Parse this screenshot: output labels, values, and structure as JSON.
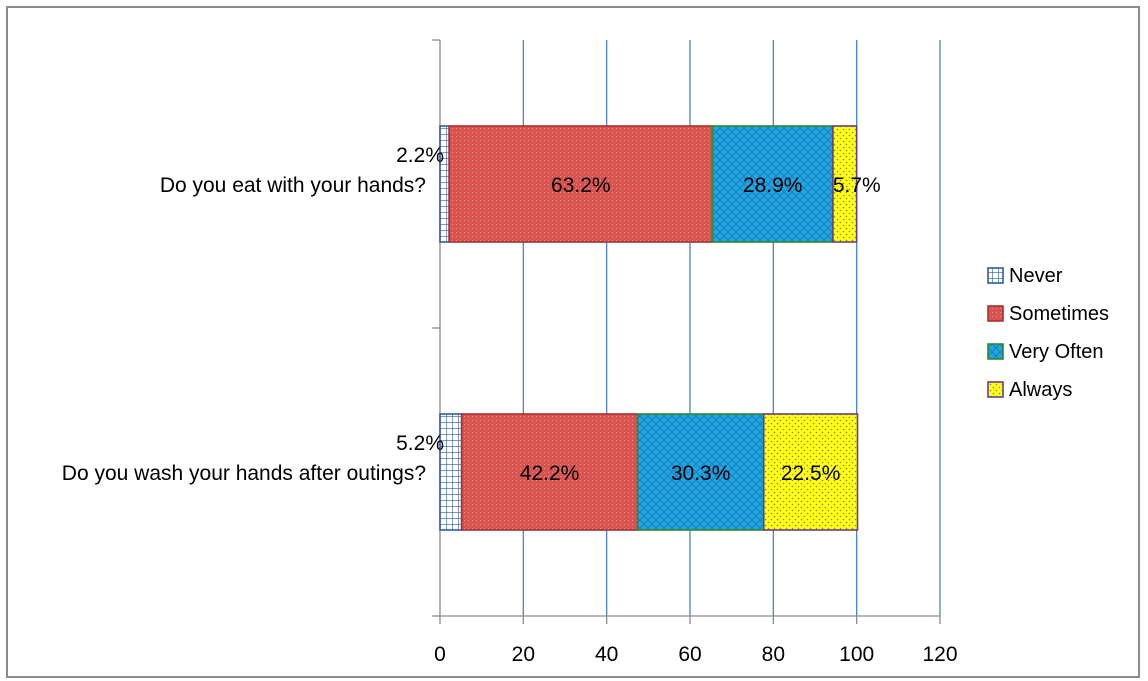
{
  "chart_data": {
    "type": "bar",
    "orientation": "horizontal",
    "stacked": true,
    "categories": [
      "Do you eat with your hands?",
      "Do you wash your hands after outings?"
    ],
    "series": [
      {
        "name": "Never",
        "values": [
          2.2,
          5.2
        ],
        "labels": [
          "2.2%",
          "5.2%"
        ],
        "color": "#ffffff",
        "border": "#2e5e9e",
        "pattern": "grid"
      },
      {
        "name": "Sometimes",
        "values": [
          63.2,
          42.2
        ],
        "labels": [
          "63.2%",
          "42.2%"
        ],
        "color": "#d9534f",
        "border": "#a83232",
        "pattern": "fine-dots"
      },
      {
        "name": "Very Often",
        "values": [
          28.9,
          30.3
        ],
        "labels": [
          "28.9%",
          "30.3%"
        ],
        "color": "#1ea7e8",
        "border": "#2e8b2e",
        "pattern": "crosshatch"
      },
      {
        "name": "Always",
        "values": [
          5.7,
          22.5
        ],
        "labels": [
          "5.7%",
          "22.5%"
        ],
        "color": "#ffff1a",
        "border": "#6a3d8a",
        "pattern": "dots"
      }
    ],
    "xlim": [
      0,
      120
    ],
    "xticks": [
      "0",
      "20",
      "40",
      "60",
      "80",
      "100",
      "120"
    ],
    "grid": "vertical",
    "legend": "right",
    "colors": {
      "grid": "#4a86c5",
      "axis": "#8c8c8c"
    }
  }
}
